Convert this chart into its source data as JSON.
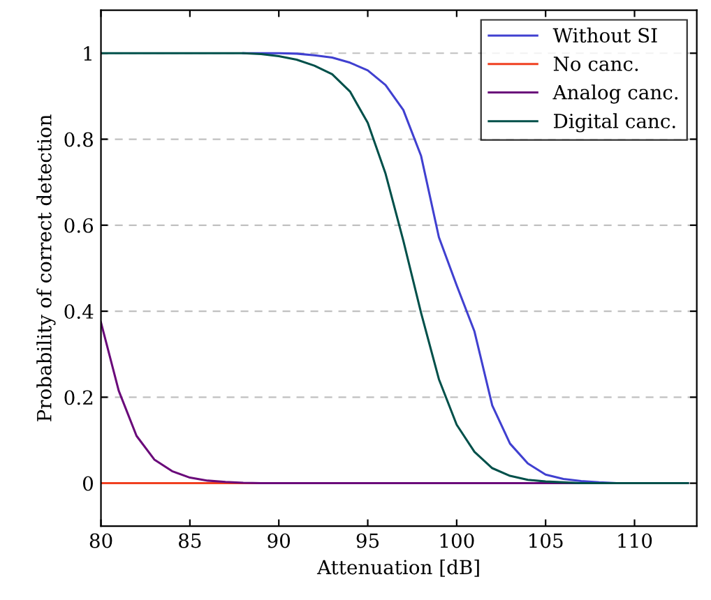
{
  "chart_data": {
    "type": "line",
    "xlabel": "Attenuation [dB]",
    "ylabel": "Probability of correct detection",
    "x": [
      80,
      81,
      82,
      83,
      84,
      85,
      86,
      87,
      88,
      89,
      90,
      91,
      92,
      93,
      94,
      95,
      96,
      97,
      98,
      99,
      100,
      101,
      102,
      103,
      104,
      105,
      106,
      107,
      108,
      109,
      110,
      111,
      112,
      113
    ],
    "series": [
      {
        "name": "Without SI",
        "color": "#4040d0",
        "values": [
          null,
          null,
          null,
          null,
          null,
          null,
          null,
          null,
          1,
          1,
          1,
          0.999,
          0.995,
          0.99,
          0.978,
          0.96,
          0.926,
          0.868,
          0.761,
          0.572,
          0.46,
          0.353,
          0.181,
          0.092,
          0.046,
          0.02,
          0.01,
          0.005,
          0.002,
          0,
          0,
          null,
          null,
          null
        ]
      },
      {
        "name": "No canc.",
        "color": "#f04020",
        "values": [
          0,
          0,
          0,
          0,
          0,
          0,
          0,
          0,
          0,
          0,
          null,
          null,
          null,
          null,
          null,
          null,
          null,
          null,
          null,
          null,
          null,
          null,
          null,
          null,
          null,
          null,
          null,
          null,
          null,
          null,
          null,
          null,
          null,
          null
        ]
      },
      {
        "name": "Analog canc.",
        "color": "#6a0a7a",
        "values": [
          0.374,
          0.215,
          0.11,
          0.055,
          0.028,
          0.013,
          0.006,
          0.003,
          0.001,
          0,
          0,
          0,
          0,
          0,
          0,
          0,
          0,
          0,
          0,
          0,
          0,
          0,
          0,
          0,
          0,
          0,
          0,
          0,
          0,
          0,
          0,
          0,
          0,
          0
        ]
      },
      {
        "name": "Digital canc.",
        "color": "#00504a",
        "values": [
          1,
          1,
          1,
          1,
          1,
          1,
          1,
          1,
          1,
          0.998,
          0.993,
          0.985,
          0.971,
          0.951,
          0.911,
          0.838,
          0.72,
          0.564,
          0.396,
          0.242,
          0.136,
          0.073,
          0.035,
          0.017,
          0.008,
          0.004,
          0.002,
          0,
          0,
          0,
          0,
          0,
          0,
          0
        ]
      }
    ],
    "xlim": [
      80,
      113.5
    ],
    "ylim": [
      -0.1,
      1.1
    ],
    "xticks": [
      80,
      85,
      90,
      95,
      100,
      105,
      110
    ],
    "yticks": [
      0,
      0.2,
      0.4,
      0.6,
      0.8,
      1
    ],
    "grid": "y",
    "legend": "top right",
    "marker": "none",
    "line_style": "solid"
  }
}
